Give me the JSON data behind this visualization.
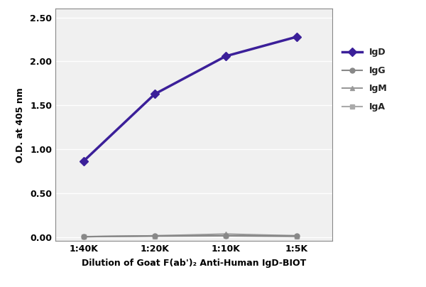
{
  "x_labels": [
    "1:40K",
    "1:20K",
    "1:10K",
    "1:5K"
  ],
  "x_values": [
    1,
    2,
    3,
    4
  ],
  "series": {
    "IgD": {
      "values": [
        0.87,
        1.63,
        2.06,
        2.28
      ],
      "color": "#3b1f99",
      "marker": "D",
      "marker_size": 6,
      "linewidth": 2.5,
      "zorder": 5
    },
    "IgG": {
      "values": [
        0.01,
        0.02,
        0.02,
        0.02
      ],
      "color": "#888888",
      "marker": "o",
      "marker_size": 5,
      "linewidth": 1.5,
      "zorder": 4
    },
    "IgM": {
      "values": [
        0.01,
        0.02,
        0.04,
        0.02
      ],
      "color": "#999999",
      "marker": "^",
      "marker_size": 5,
      "linewidth": 1.5,
      "zorder": 3
    },
    "IgA": {
      "values": [
        0.01,
        0.015,
        0.02,
        0.01
      ],
      "color": "#aaaaaa",
      "marker": "s",
      "marker_size": 5,
      "linewidth": 1.5,
      "zorder": 2
    }
  },
  "xlabel": "Dilution of Goat F(ab')₂ Anti-Human IgD-BIOT",
  "ylabel": "O.D. at 405 nm",
  "ylim": [
    -0.04,
    2.6
  ],
  "yticks": [
    0.0,
    0.5,
    1.0,
    1.5,
    2.0,
    2.5
  ],
  "title": "",
  "legend_order": [
    "IgD",
    "IgG",
    "IgM",
    "IgA"
  ],
  "plot_bg_color": "#f0f0f0",
  "fig_bg_color": "#ffffff",
  "grid_color": "#ffffff",
  "spine_color": "#888888",
  "tick_label_color": "#000000",
  "label_color": "#000000"
}
